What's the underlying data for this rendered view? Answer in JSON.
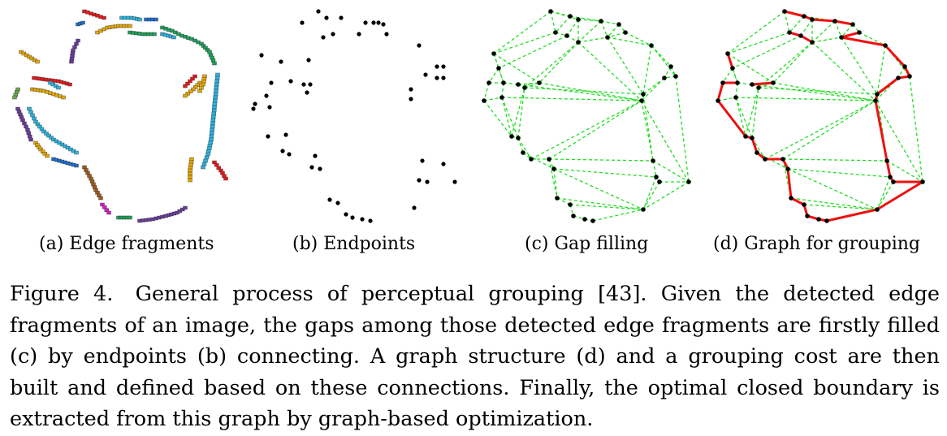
{
  "panels": [
    {
      "id": "a",
      "caption": "(a) Edge fragments"
    },
    {
      "id": "b",
      "caption": "(b) Endpoints"
    },
    {
      "id": "c",
      "caption": "(c) Gap filling"
    },
    {
      "id": "d",
      "caption": "(d) Graph for grouping"
    }
  ],
  "figure_caption": {
    "label": "Figure 4.",
    "text": "General process of perceptual grouping [43]. Given the detected edge fragments of an image, the gaps among those detected edge fragments are firstly filled (c) by endpoints (b) connecting. A graph structure (d) and a grouping cost are then built and defined based on these connections. Finally, the optimal closed boundary is extracted from this graph by graph-based optimization."
  },
  "colors": {
    "red": "#e41a1c",
    "blue": "#1f6fd1",
    "cyan": "#2ab5e0",
    "green": "#1ea05a",
    "purple": "#6a3d9a",
    "orange": "#e6a800",
    "brown": "#a05a1e",
    "magenta": "#d11fc8",
    "olive": "#6aa84f",
    "gap_line": "#22dd22",
    "endpoint": "#000000",
    "graph_edge": "#ee1111"
  }
}
